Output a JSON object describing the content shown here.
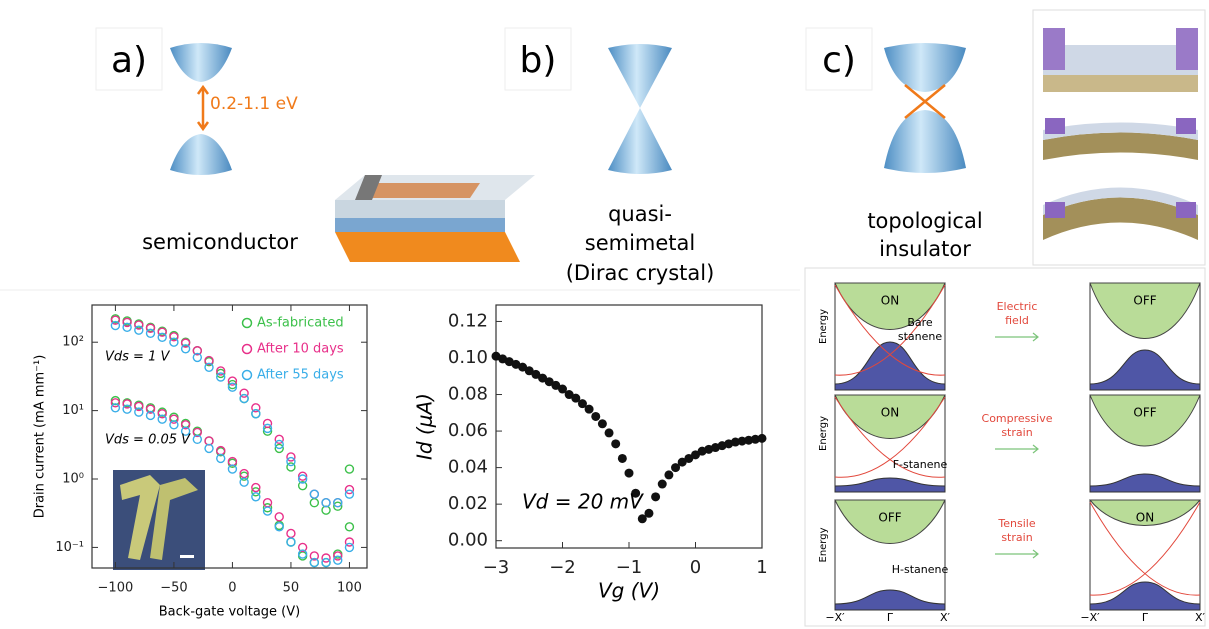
{
  "panels": {
    "a": {
      "label": "a)",
      "gap": "0.2-1.1 eV",
      "caption": [
        "semiconductor"
      ]
    },
    "b": {
      "label": "b)",
      "caption": [
        "quasi-",
        "semimetal",
        "(Dirac crystal)"
      ]
    },
    "c": {
      "label": "c)",
      "caption": [
        "topological",
        "insulator"
      ]
    }
  },
  "chart_data": [
    {
      "type": "scatter",
      "ylog": true,
      "xlabel": "Back-gate voltage (V)",
      "ylabel": "Drain current (mA mm⁻¹)",
      "x": [
        -100,
        -90,
        -80,
        -70,
        -60,
        -50,
        -40,
        -30,
        -20,
        -10,
        0,
        10,
        20,
        30,
        40,
        50,
        60,
        70,
        80,
        90,
        100
      ],
      "series": [
        {
          "name": "As-fabricated",
          "color": "#3cc04a",
          "values": [
            220,
            205,
            185,
            165,
            145,
            125,
            100,
            75,
            52,
            35,
            24,
            15,
            9,
            5,
            2.8,
            1.5,
            0.8,
            0.45,
            0.35,
            0.4,
            1.4
          ],
          "values_2": [
            14,
            13,
            12,
            11,
            9.5,
            8,
            6.5,
            5,
            3.6,
            2.5,
            1.7,
            1.1,
            0.65,
            0.38,
            0.21,
            0.12,
            0.075,
            0.06,
            0.06,
            0.08,
            0.2
          ]
        },
        {
          "name": "After 10 days",
          "color": "#e8308a",
          "values": [
            210,
            195,
            178,
            160,
            140,
            120,
            97,
            75,
            54,
            38,
            27,
            18,
            11,
            6.5,
            3.8,
            2.1,
            1.1,
            0.6,
            0.45,
            0.45,
            0.7
          ],
          "values_2": [
            13,
            12.5,
            11.5,
            10.5,
            9,
            7.5,
            6.2,
            4.8,
            3.6,
            2.6,
            1.8,
            1.2,
            0.75,
            0.45,
            0.28,
            0.16,
            0.1,
            0.075,
            0.07,
            0.075,
            0.12
          ]
        },
        {
          "name": "After 55 days",
          "color": "#3aaee8",
          "values": [
            175,
            165,
            150,
            135,
            118,
            100,
            80,
            60,
            43,
            31,
            22,
            15,
            9,
            5.5,
            3.2,
            1.8,
            1.0,
            0.6,
            0.45,
            0.45,
            0.6
          ],
          "values_2": [
            11,
            10.5,
            9.5,
            8.5,
            7.5,
            6.2,
            5,
            3.8,
            2.8,
            2,
            1.4,
            0.9,
            0.55,
            0.34,
            0.2,
            0.12,
            0.08,
            0.06,
            0.06,
            0.065,
            0.1
          ]
        }
      ],
      "annotations": [
        "Vds = 1 V",
        "Vds = 0.05 V"
      ],
      "legend": "top-right",
      "xlim": [
        -120,
        115
      ],
      "xticks": [
        {
          "value": -100,
          "label": "−100"
        },
        {
          "value": -50,
          "label": "−50"
        },
        0,
        50,
        100
      ],
      "ylim": [
        0.05,
        350
      ],
      "yticks": [
        {
          "value": 0.1,
          "label": "10⁻¹"
        },
        {
          "value": 1,
          "label": "10⁰"
        },
        {
          "value": 10,
          "label": "10¹"
        },
        {
          "value": 100,
          "label": "10²"
        }
      ]
    },
    {
      "type": "scatter",
      "xlabel": "Vg (V)",
      "ylabel": "Id (μA)",
      "color": "#111111",
      "x": [
        -3.0,
        -2.9,
        -2.8,
        -2.7,
        -2.6,
        -2.5,
        -2.4,
        -2.3,
        -2.2,
        -2.1,
        -2.0,
        -1.9,
        -1.8,
        -1.7,
        -1.6,
        -1.5,
        -1.4,
        -1.3,
        -1.2,
        -1.1,
        -1.0,
        -0.9,
        -0.8,
        -0.7,
        -0.6,
        -0.5,
        -0.4,
        -0.3,
        -0.2,
        -0.1,
        0.0,
        0.1,
        0.2,
        0.3,
        0.4,
        0.5,
        0.6,
        0.7,
        0.8,
        0.9,
        1.0
      ],
      "values": [
        0.101,
        0.0995,
        0.098,
        0.0965,
        0.095,
        0.093,
        0.091,
        0.089,
        0.087,
        0.085,
        0.083,
        0.08,
        0.078,
        0.075,
        0.072,
        0.068,
        0.064,
        0.059,
        0.053,
        0.045,
        0.037,
        0.026,
        0.012,
        0.015,
        0.024,
        0.031,
        0.036,
        0.04,
        0.043,
        0.045,
        0.047,
        0.049,
        0.05,
        0.051,
        0.052,
        0.053,
        0.054,
        0.0545,
        0.055,
        0.0555,
        0.056
      ],
      "annotations": [
        "Vd = 20 mV"
      ],
      "xlim": [
        -3,
        1
      ],
      "xticks": [
        {
          "value": -3,
          "label": "−3"
        },
        {
          "value": -2,
          "label": "−2"
        },
        {
          "value": -1,
          "label": "−1"
        },
        0,
        1
      ],
      "ylim": [
        -0.004,
        0.129
      ],
      "yticks": [
        {
          "value": 0,
          "label": "0.00"
        },
        0.02,
        0.04,
        0.06,
        0.08,
        {
          "value": 0.1,
          "label": "0.10"
        },
        0.12
      ]
    }
  ],
  "band_diagram": {
    "y_label": "Energy",
    "x_labels": [
      "−X′",
      "Γ",
      "X′"
    ],
    "rows": [
      {
        "left_state": "ON",
        "left_label": [
          "Bare",
          "stanene"
        ],
        "arrow": [
          "Electric",
          "field"
        ],
        "right_state": "OFF"
      },
      {
        "left_state": "ON",
        "left_label": [
          "F-stanene"
        ],
        "arrow": [
          "Compressive",
          "strain"
        ],
        "right_state": "OFF"
      },
      {
        "left_state": "OFF",
        "left_label": [
          "H-stanene"
        ],
        "arrow": [
          "Tensile",
          "strain"
        ],
        "right_state": "ON"
      }
    ]
  }
}
